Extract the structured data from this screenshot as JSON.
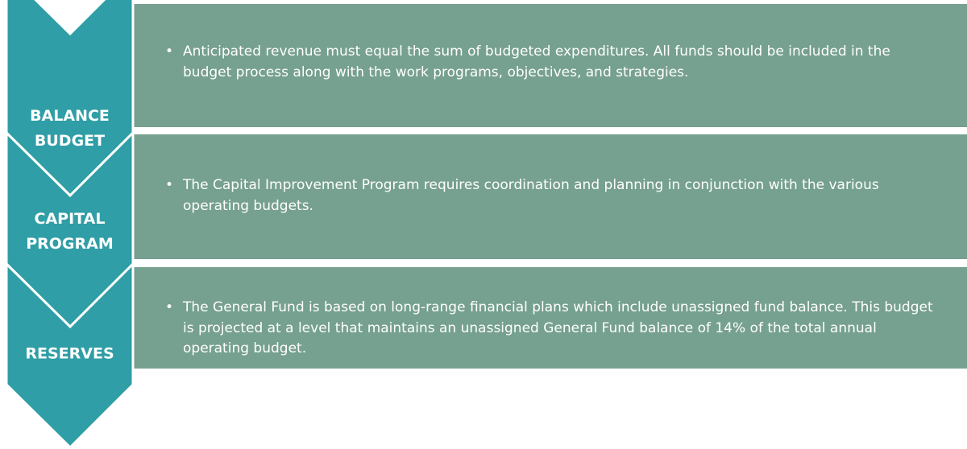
{
  "rows": [
    {
      "label": "BALANCE BUDGET",
      "text": "Anticipated revenue must equal the sum of budgeted expenditures. All funds should be included in the budget process along with the work programs, objectives, and strategies."
    },
    {
      "label": "CAPITAL PROGRAM",
      "text": "The Capital Improvement Program requires coordination and planning in conjunction with the various operating budgets."
    },
    {
      "label": "RESERVES",
      "text": "The General Fund is based on long-range financial plans which include unassigned fund balance. This budget is projected at a level that maintains an unassigned General Fund balance of 14% of the total annual operating budget."
    }
  ]
}
